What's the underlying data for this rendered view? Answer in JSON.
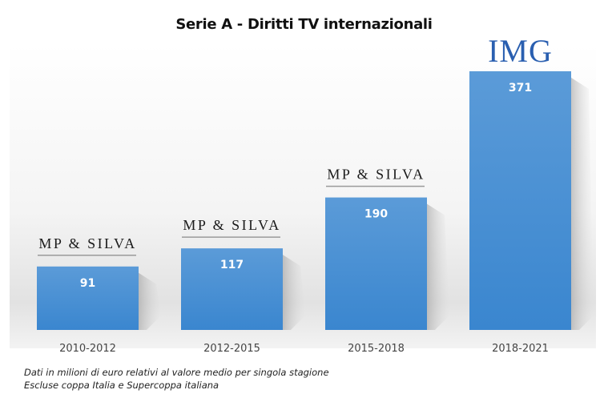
{
  "chart_data": {
    "type": "bar",
    "title": "Serie A - Diritti TV internazionali",
    "categories": [
      "2010-2012",
      "2012-2015",
      "2015-2018",
      "2018-2021"
    ],
    "values": [
      91,
      117,
      190,
      371
    ],
    "data_labels": [
      "91",
      "117",
      "190",
      "371"
    ],
    "broadcasters": [
      "MP & SILVA",
      "MP & SILVA",
      "MP & SILVA",
      "IMG"
    ],
    "xlabel": "",
    "ylabel": "",
    "ylim": [
      0,
      371
    ],
    "grid": false,
    "legend": "none",
    "bar_color": "#4a8fd4",
    "footnotes": [
      "Dati in milioni di euro relativi al valore medio per singola stagione",
      "Escluse coppa Italia e Supercoppa italiana"
    ]
  }
}
